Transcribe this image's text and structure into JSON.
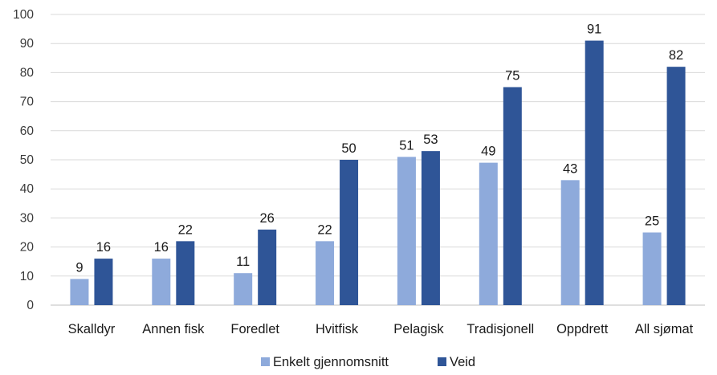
{
  "chart_data": {
    "type": "bar",
    "categories": [
      "Skalldyr",
      "Annen fisk",
      "Foredlet",
      "Hvitfisk",
      "Pelagisk",
      "Tradisjonell",
      "Oppdrett",
      "All sjømat"
    ],
    "series": [
      {
        "name": "Enkelt gjennomsnitt",
        "color": "#8eaadb",
        "values": [
          9,
          16,
          11,
          22,
          51,
          49,
          43,
          25
        ]
      },
      {
        "name": "Veid",
        "color": "#2f5597",
        "values": [
          16,
          22,
          26,
          50,
          53,
          75,
          91,
          82
        ]
      }
    ],
    "ylim": [
      0,
      100
    ],
    "yticks": [
      0,
      10,
      20,
      30,
      40,
      50,
      60,
      70,
      80,
      90,
      100
    ],
    "grid": true,
    "legend_position": "bottom",
    "title": "",
    "xlabel": "",
    "ylabel": ""
  }
}
